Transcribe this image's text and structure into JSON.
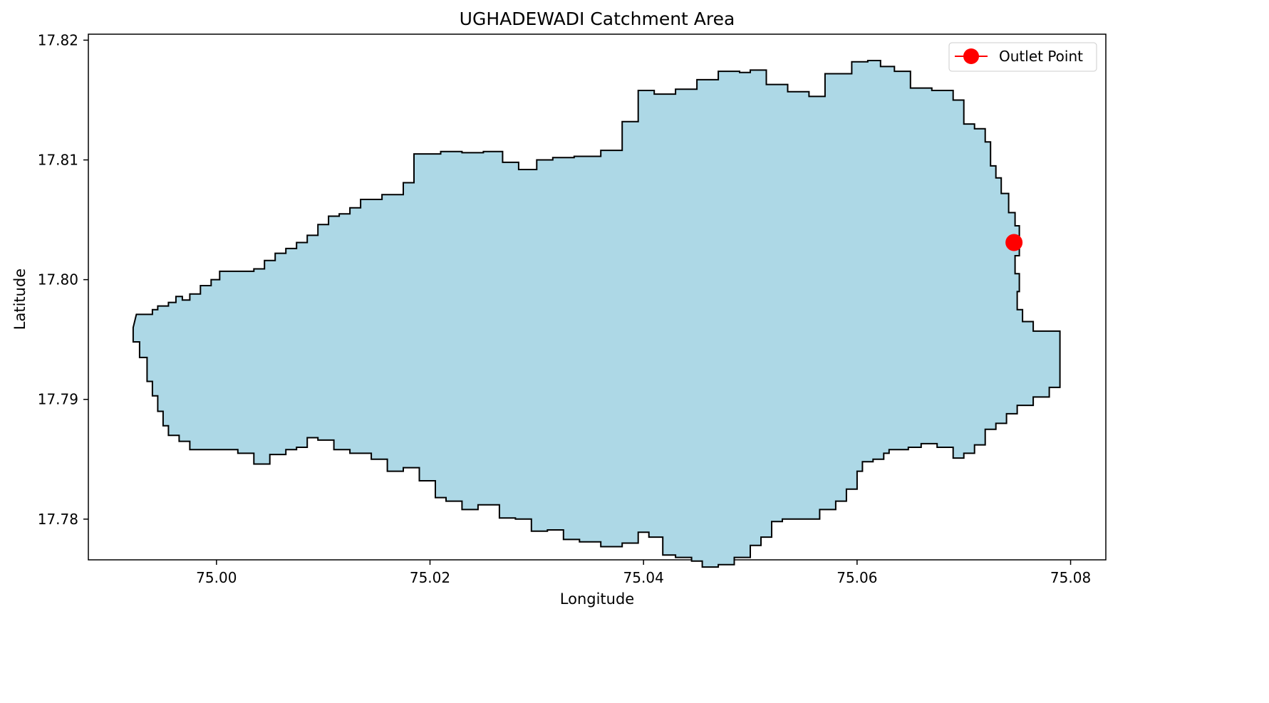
{
  "chart_data": {
    "type": "map-polygon",
    "title": "UGHADEWADI Catchment Area",
    "xlabel": "Longitude",
    "ylabel": "Latitude",
    "xlim": [
      74.988,
      75.0833
    ],
    "ylim": [
      17.7766,
      17.8205
    ],
    "x_ticks": [
      {
        "value": 75.0,
        "label": "75.00"
      },
      {
        "value": 75.02,
        "label": "75.02"
      },
      {
        "value": 75.04,
        "label": "75.04"
      },
      {
        "value": 75.06,
        "label": "75.06"
      },
      {
        "value": 75.08,
        "label": "75.08"
      }
    ],
    "y_ticks": [
      {
        "value": 17.78,
        "label": "17.78"
      },
      {
        "value": 17.79,
        "label": "17.79"
      },
      {
        "value": 17.8,
        "label": "17.80"
      },
      {
        "value": 17.81,
        "label": "17.81"
      },
      {
        "value": 17.82,
        "label": "17.82"
      }
    ],
    "catchment": {
      "name": "Catchment",
      "fill": "#add8e6",
      "edge": "#000000",
      "boundary": [
        [
          74.9925,
          17.7971
        ],
        [
          74.9935,
          17.7971
        ],
        [
          74.994,
          17.7975
        ],
        [
          74.9945,
          17.7978
        ],
        [
          74.9955,
          17.7981
        ],
        [
          74.9962,
          17.7986
        ],
        [
          74.9968,
          17.7983
        ],
        [
          74.9975,
          17.7988
        ],
        [
          74.9985,
          17.7995
        ],
        [
          74.9995,
          17.8
        ],
        [
          75.0003,
          17.8007
        ],
        [
          75.0025,
          17.8007
        ],
        [
          75.0035,
          17.8009
        ],
        [
          75.0045,
          17.8016
        ],
        [
          75.0055,
          17.8022
        ],
        [
          75.0065,
          17.8026
        ],
        [
          75.0075,
          17.8031
        ],
        [
          75.0085,
          17.8037
        ],
        [
          75.0095,
          17.8046
        ],
        [
          75.0105,
          17.8053
        ],
        [
          75.0115,
          17.8055
        ],
        [
          75.0125,
          17.806
        ],
        [
          75.0135,
          17.8067
        ],
        [
          75.0155,
          17.8071
        ],
        [
          75.0175,
          17.8081
        ],
        [
          75.0185,
          17.8105
        ],
        [
          75.021,
          17.8107
        ],
        [
          75.023,
          17.8106
        ],
        [
          75.025,
          17.8107
        ],
        [
          75.0268,
          17.8098
        ],
        [
          75.0283,
          17.8092
        ],
        [
          75.03,
          17.81
        ],
        [
          75.0315,
          17.8102
        ],
        [
          75.0335,
          17.8103
        ],
        [
          75.036,
          17.8108
        ],
        [
          75.038,
          17.8132
        ],
        [
          75.0395,
          17.8158
        ],
        [
          75.041,
          17.8155
        ],
        [
          75.043,
          17.8159
        ],
        [
          75.045,
          17.8167
        ],
        [
          75.047,
          17.8174
        ],
        [
          75.049,
          17.8173
        ],
        [
          75.05,
          17.8175
        ],
        [
          75.0515,
          17.8163
        ],
        [
          75.0535,
          17.8157
        ],
        [
          75.0555,
          17.8153
        ],
        [
          75.057,
          17.8172
        ],
        [
          75.0595,
          17.8182
        ],
        [
          75.061,
          17.8183
        ],
        [
          75.0622,
          17.8178
        ],
        [
          75.0635,
          17.8174
        ],
        [
          75.065,
          17.816
        ],
        [
          75.067,
          17.8158
        ],
        [
          75.069,
          17.815
        ],
        [
          75.07,
          17.813
        ],
        [
          75.071,
          17.8126
        ],
        [
          75.072,
          17.8115
        ],
        [
          75.0725,
          17.8095
        ],
        [
          75.073,
          17.8085
        ],
        [
          75.0735,
          17.8072
        ],
        [
          75.0742,
          17.8056
        ],
        [
          75.0748,
          17.8045
        ],
        [
          75.0752,
          17.803
        ],
        [
          75.0752,
          17.802
        ],
        [
          75.0748,
          17.8005
        ],
        [
          75.0752,
          17.799
        ],
        [
          75.075,
          17.7975
        ],
        [
          75.0755,
          17.7965
        ],
        [
          75.0765,
          17.7957
        ],
        [
          75.079,
          17.7955
        ],
        [
          75.079,
          17.794
        ],
        [
          75.079,
          17.791
        ],
        [
          75.078,
          17.7902
        ],
        [
          75.0765,
          17.7895
        ],
        [
          75.075,
          17.7888
        ],
        [
          75.074,
          17.788
        ],
        [
          75.073,
          17.7875
        ],
        [
          75.072,
          17.7862
        ],
        [
          75.071,
          17.7855
        ],
        [
          75.07,
          17.7851
        ],
        [
          75.069,
          17.786
        ],
        [
          75.0675,
          17.7863
        ],
        [
          75.066,
          17.786
        ],
        [
          75.0648,
          17.7858
        ],
        [
          75.063,
          17.7855
        ],
        [
          75.0625,
          17.785
        ],
        [
          75.0615,
          17.7848
        ],
        [
          75.0605,
          17.784
        ],
        [
          75.06,
          17.7825
        ],
        [
          75.059,
          17.7815
        ],
        [
          75.058,
          17.7808
        ],
        [
          75.0565,
          17.78
        ],
        [
          75.0545,
          17.78
        ],
        [
          75.053,
          17.7798
        ],
        [
          75.052,
          17.7785
        ],
        [
          75.051,
          17.7778
        ],
        [
          75.05,
          17.7768
        ],
        [
          75.0485,
          17.7762
        ],
        [
          75.047,
          17.776
        ],
        [
          75.0455,
          17.7765
        ],
        [
          75.0445,
          17.7768
        ],
        [
          75.043,
          17.777
        ],
        [
          75.0418,
          17.7785
        ],
        [
          75.0405,
          17.7789
        ],
        [
          75.0395,
          17.778
        ],
        [
          75.038,
          17.7777
        ],
        [
          75.036,
          17.7781
        ],
        [
          75.034,
          17.7783
        ],
        [
          75.0325,
          17.7791
        ],
        [
          75.031,
          17.779
        ],
        [
          75.0295,
          17.78
        ],
        [
          75.028,
          17.7801
        ],
        [
          75.0265,
          17.7812
        ],
        [
          75.0245,
          17.7808
        ],
        [
          75.023,
          17.7815
        ],
        [
          75.0215,
          17.7818
        ],
        [
          75.0205,
          17.7832
        ],
        [
          75.019,
          17.7843
        ],
        [
          75.0175,
          17.784
        ],
        [
          75.016,
          17.785
        ],
        [
          75.0145,
          17.7855
        ],
        [
          75.0125,
          17.7858
        ],
        [
          75.011,
          17.7866
        ],
        [
          75.0095,
          17.7868
        ],
        [
          75.0085,
          17.786
        ],
        [
          75.0075,
          17.7858
        ],
        [
          75.0065,
          17.7854
        ],
        [
          75.005,
          17.7846
        ],
        [
          75.0035,
          17.7855
        ],
        [
          75.002,
          17.7858
        ],
        [
          75.0005,
          17.7858
        ],
        [
          74.999,
          17.7858
        ],
        [
          74.9975,
          17.7865
        ],
        [
          74.9965,
          17.787
        ],
        [
          74.9955,
          17.7878
        ],
        [
          74.995,
          17.789
        ],
        [
          74.9945,
          17.7903
        ],
        [
          74.994,
          17.7915
        ],
        [
          74.9935,
          17.7935
        ],
        [
          74.9928,
          17.7948
        ],
        [
          74.9922,
          17.796
        ]
      ]
    },
    "outlet": {
      "lon": 75.0747,
      "lat": 17.8031,
      "color": "#ff0000"
    },
    "legend": {
      "label": "Outlet Point",
      "location": "top-right"
    }
  }
}
